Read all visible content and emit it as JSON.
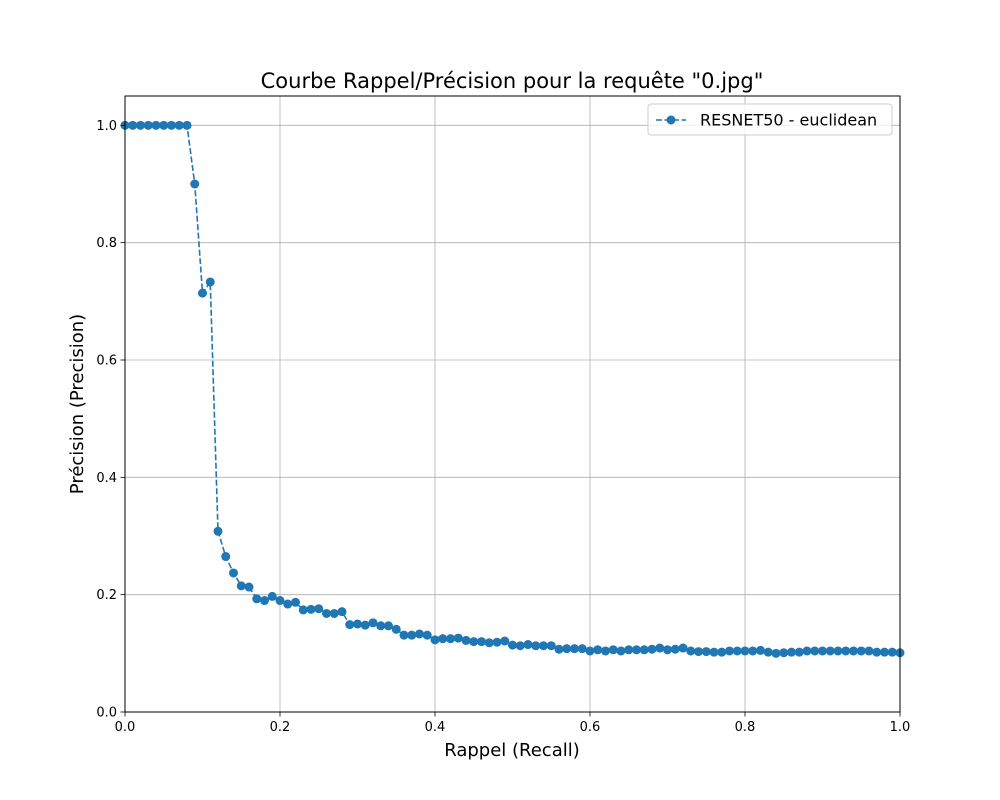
{
  "chart_data": {
    "type": "line",
    "title": "Courbe Rappel/Précision pour la requête \"0.jpg\"",
    "xlabel": "Rappel (Recall)",
    "ylabel": "Précision (Precision)",
    "xlim": [
      0,
      1.0
    ],
    "ylim": [
      0,
      1.05
    ],
    "xticks": [
      "0.0",
      "0.2",
      "0.4",
      "0.6",
      "0.8",
      "1.0"
    ],
    "yticks": [
      "0.0",
      "0.2",
      "0.4",
      "0.6",
      "0.8",
      "1.0"
    ],
    "grid": true,
    "legend": {
      "position": "top-right"
    },
    "series": [
      {
        "name": "RESNET50 - euclidean",
        "color": "#1f77b4",
        "line_style": "dashed",
        "marker": "circle",
        "x": [
          0.0,
          0.01,
          0.02,
          0.03,
          0.04,
          0.05,
          0.06,
          0.07,
          0.08,
          0.09,
          0.1,
          0.11,
          0.12,
          0.13,
          0.14,
          0.15,
          0.16,
          0.17,
          0.18,
          0.19,
          0.2,
          0.21,
          0.22,
          0.23,
          0.24,
          0.25,
          0.26,
          0.27,
          0.28,
          0.29,
          0.3,
          0.31,
          0.32,
          0.33,
          0.34,
          0.35,
          0.36,
          0.37,
          0.38,
          0.39,
          0.4,
          0.41,
          0.42,
          0.43,
          0.44,
          0.45,
          0.46,
          0.47,
          0.48,
          0.49,
          0.5,
          0.51,
          0.52,
          0.53,
          0.54,
          0.55,
          0.56,
          0.57,
          0.58,
          0.59,
          0.6,
          0.61,
          0.62,
          0.63,
          0.64,
          0.65,
          0.66,
          0.67,
          0.68,
          0.69,
          0.7,
          0.71,
          0.72,
          0.73,
          0.74,
          0.75,
          0.76,
          0.77,
          0.78,
          0.79,
          0.8,
          0.81,
          0.82,
          0.83,
          0.84,
          0.85,
          0.86,
          0.87,
          0.88,
          0.89,
          0.9,
          0.91,
          0.92,
          0.93,
          0.94,
          0.95,
          0.96,
          0.97,
          0.98,
          0.99,
          1.0
        ],
        "y": [
          1.0,
          1.0,
          1.0,
          1.0,
          1.0,
          1.0,
          1.0,
          1.0,
          1.0,
          0.9,
          0.714,
          0.733,
          0.308,
          0.265,
          0.237,
          0.215,
          0.213,
          0.193,
          0.19,
          0.197,
          0.19,
          0.184,
          0.187,
          0.174,
          0.175,
          0.176,
          0.168,
          0.168,
          0.171,
          0.149,
          0.15,
          0.148,
          0.152,
          0.147,
          0.147,
          0.141,
          0.131,
          0.131,
          0.133,
          0.131,
          0.123,
          0.125,
          0.125,
          0.126,
          0.122,
          0.12,
          0.12,
          0.118,
          0.119,
          0.121,
          0.114,
          0.113,
          0.115,
          0.113,
          0.113,
          0.113,
          0.107,
          0.108,
          0.108,
          0.108,
          0.104,
          0.106,
          0.104,
          0.106,
          0.104,
          0.106,
          0.106,
          0.106,
          0.107,
          0.109,
          0.106,
          0.107,
          0.109,
          0.104,
          0.103,
          0.103,
          0.102,
          0.102,
          0.104,
          0.104,
          0.104,
          0.104,
          0.105,
          0.102,
          0.1,
          0.101,
          0.102,
          0.102,
          0.104,
          0.104,
          0.104,
          0.104,
          0.104,
          0.104,
          0.104,
          0.104,
          0.104,
          0.102,
          0.102,
          0.102,
          0.101
        ]
      }
    ]
  }
}
